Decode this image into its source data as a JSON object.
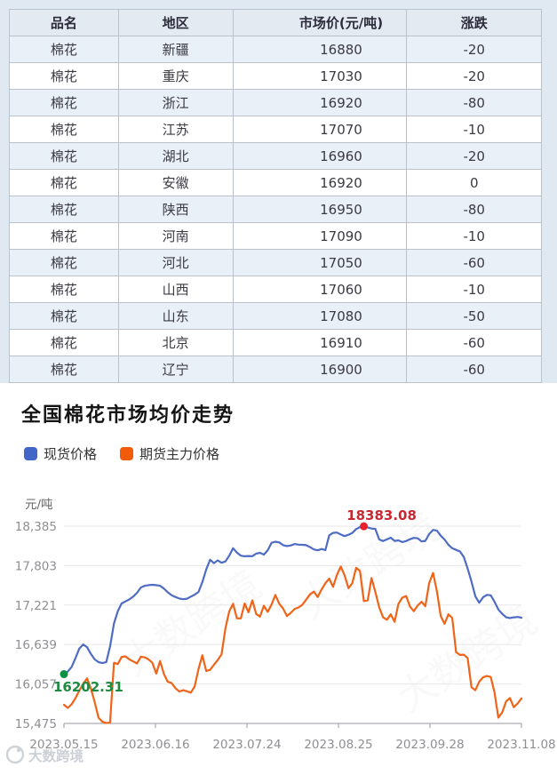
{
  "table": {
    "headers": [
      "品名",
      "地区",
      "市场价(元/吨)",
      "涨跌"
    ],
    "rows": [
      {
        "name": "棉花",
        "region": "新疆",
        "price": "16880",
        "change": "-20"
      },
      {
        "name": "棉花",
        "region": "重庆",
        "price": "17030",
        "change": "-20"
      },
      {
        "name": "棉花",
        "region": "浙江",
        "price": "16920",
        "change": "-80"
      },
      {
        "name": "棉花",
        "region": "江苏",
        "price": "17070",
        "change": "-10"
      },
      {
        "name": "棉花",
        "region": "湖北",
        "price": "16960",
        "change": "-20"
      },
      {
        "name": "棉花",
        "region": "安徽",
        "price": "16920",
        "change": "0"
      },
      {
        "name": "棉花",
        "region": "陕西",
        "price": "16950",
        "change": "-80"
      },
      {
        "name": "棉花",
        "region": "河南",
        "price": "17090",
        "change": "-10"
      },
      {
        "name": "棉花",
        "region": "河北",
        "price": "17050",
        "change": "-60"
      },
      {
        "name": "棉花",
        "region": "山西",
        "price": "17060",
        "change": "-10"
      },
      {
        "name": "棉花",
        "region": "山东",
        "price": "17080",
        "change": "-50"
      },
      {
        "name": "棉花",
        "region": "北京",
        "price": "16910",
        "change": "-60"
      },
      {
        "name": "棉花",
        "region": "辽宁",
        "price": "16900",
        "change": "-60"
      }
    ],
    "change_down_color": "#27a22c"
  },
  "chart": {
    "title": "全国棉花市场均价走势",
    "unit": "元/吨",
    "legend": [
      {
        "label": "现货价格",
        "color": "#4265c8"
      },
      {
        "label": "期货主力价格",
        "color": "#f25b0a"
      }
    ]
  },
  "watermark": {
    "text": "大数跨境"
  },
  "chart_data": {
    "type": "line",
    "title": "全国棉花市场均价走势",
    "ylabel": "元/吨",
    "ylim": [
      15475,
      18385
    ],
    "grid": true,
    "legend_position": "top-left",
    "y_ticks": [
      18385,
      17803,
      17221,
      16639,
      16057,
      15475
    ],
    "y_tick_labels": [
      "18,385",
      "17,803",
      "17,221",
      "16,639",
      "16,057",
      "15,475"
    ],
    "x_tick_labels": [
      "2023.05.15",
      "2023.06.16",
      "2023.07.24",
      "2023.08.25",
      "2023.09.28",
      "2023.11.08"
    ],
    "series": [
      {
        "name": "现货价格",
        "color": "#4e6cc3",
        "values": [
          16202,
          16240,
          16310,
          16440,
          16580,
          16640,
          16600,
          16500,
          16420,
          16380,
          16365,
          16380,
          16610,
          16950,
          17130,
          17245,
          17275,
          17305,
          17345,
          17400,
          17480,
          17505,
          17515,
          17520,
          17515,
          17505,
          17465,
          17410,
          17365,
          17340,
          17318,
          17308,
          17315,
          17345,
          17375,
          17415,
          17560,
          17745,
          17890,
          17840,
          17880,
          17845,
          17865,
          17950,
          18060,
          17995,
          17950,
          17940,
          17945,
          17942,
          17980,
          17992,
          17965,
          18030,
          18140,
          18155,
          18145,
          18105,
          18092,
          18100,
          18122,
          18112,
          18110,
          18105,
          18075,
          18042,
          18028,
          18048,
          18032,
          18250,
          18285,
          18290,
          18262,
          18238,
          18258,
          18285,
          18342,
          18370,
          18383.08,
          18365,
          18350,
          18345,
          18188,
          18165,
          18190,
          18215,
          18168,
          18175,
          18150,
          18165,
          18192,
          18212,
          18206,
          18160,
          18168,
          18268,
          18330,
          18318,
          18245,
          18188,
          18110,
          18058,
          18035,
          18012,
          17930,
          17760,
          17570,
          17350,
          17255,
          17335,
          17372,
          17365,
          17270,
          17155,
          17090,
          17042,
          17030,
          17040,
          17045,
          17035
        ]
      },
      {
        "name": "期货主力价格",
        "color": "#ef6418",
        "values": [
          15750,
          15705,
          15760,
          15850,
          15960,
          16060,
          16140,
          15990,
          15790,
          15560,
          15500,
          15480,
          15490,
          16370,
          16350,
          16455,
          16465,
          16420,
          16390,
          16360,
          16460,
          16450,
          16420,
          16370,
          16210,
          16395,
          16205,
          16090,
          16070,
          15995,
          15945,
          15965,
          15950,
          15930,
          16020,
          16280,
          16480,
          16250,
          16265,
          16340,
          16410,
          16495,
          16880,
          17130,
          17240,
          17025,
          17025,
          17245,
          17115,
          17290,
          17090,
          17050,
          17210,
          17120,
          17230,
          17370,
          17240,
          17170,
          17060,
          17105,
          17165,
          17185,
          17225,
          17300,
          17380,
          17420,
          17340,
          17450,
          17545,
          17610,
          17490,
          17665,
          17790,
          17660,
          17470,
          17545,
          17770,
          17725,
          17280,
          17290,
          17620,
          17415,
          17185,
          17040,
          17005,
          17085,
          16975,
          17240,
          17330,
          17355,
          17200,
          17130,
          17215,
          17270,
          17205,
          17545,
          17695,
          17425,
          17060,
          16945,
          17085,
          17030,
          16525,
          16485,
          16490,
          16440,
          16010,
          15965,
          16090,
          16155,
          16175,
          16160,
          15930,
          15560,
          15640,
          15800,
          15850,
          15715,
          15770,
          15845
        ]
      }
    ],
    "annotations": [
      {
        "type": "max",
        "series": "现货价格",
        "index": 78,
        "label": "18383.08",
        "text_color": "#c82832",
        "dot_color": "#e8212e"
      },
      {
        "type": "min",
        "series": "现货价格",
        "index": 0,
        "label": "16202.31",
        "text_color": "#1d8a41",
        "dot_color": "#0b8f42"
      }
    ]
  }
}
